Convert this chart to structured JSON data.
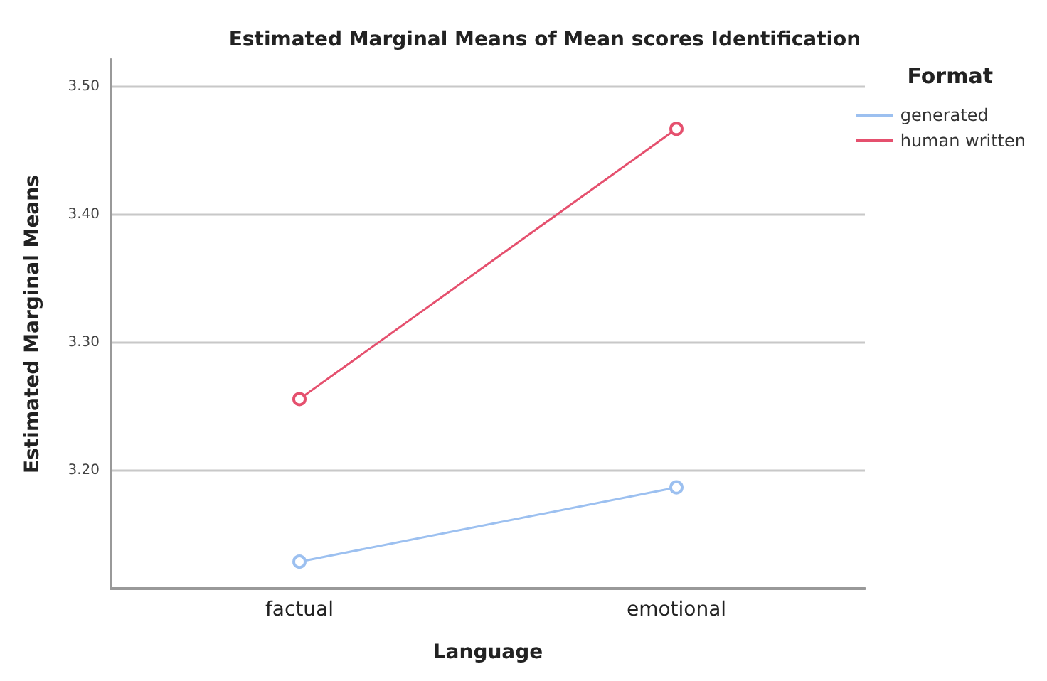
{
  "chart_data": {
    "type": "line",
    "title": "Estimated Marginal Means of Mean scores Identification",
    "xlabel": "Language",
    "ylabel": "Estimated Marginal Means",
    "legend_title": "Format",
    "categories": [
      "factual",
      "emotional"
    ],
    "series": [
      {
        "name": "generated",
        "color": "#9cc0f0",
        "values": [
          3.129,
          3.187
        ]
      },
      {
        "name": "human written",
        "color": "#e5506e",
        "values": [
          3.256,
          3.467
        ]
      }
    ],
    "ylim": [
      3.108,
      3.521
    ],
    "yticks": [
      {
        "value": 3.2,
        "label": "3.20"
      },
      {
        "value": 3.3,
        "label": "3.30"
      },
      {
        "value": 3.4,
        "label": "3.40"
      },
      {
        "value": 3.5,
        "label": "3.50"
      }
    ],
    "grid": "y",
    "legend": "top right",
    "marker": "circle",
    "line_style": "solid"
  }
}
